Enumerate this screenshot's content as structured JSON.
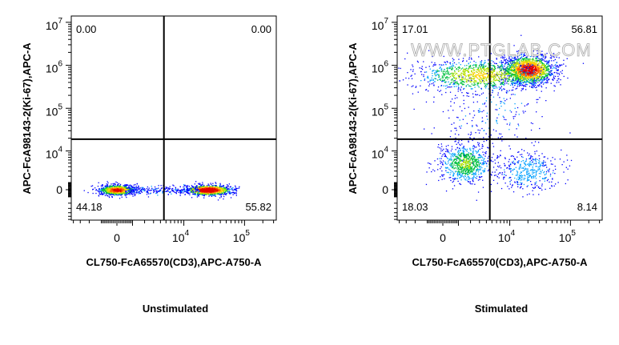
{
  "chart_data": [
    {
      "type": "scatter",
      "subtype": "flow-cytometry-density-dot-plot",
      "title": "Unstimulated",
      "xlabel": "CL750-FcA65570(CD3),APC-A750-A",
      "ylabel": "APC-FcA98143-2(Ki-67),APC-A",
      "x_scale": "biexponential",
      "y_scale": "biexponential",
      "x_ticks": [
        {
          "value": 0,
          "base": "0",
          "exp": ""
        },
        {
          "value": 10000,
          "base": "10",
          "exp": "4"
        },
        {
          "value": 100000,
          "base": "10",
          "exp": "5"
        }
      ],
      "y_ticks": [
        {
          "value": 0,
          "base": "0",
          "exp": ""
        },
        {
          "value": 10000,
          "base": "10",
          "exp": "4"
        },
        {
          "value": 100000,
          "base": "10",
          "exp": "5"
        },
        {
          "value": 1000000,
          "base": "10",
          "exp": "6"
        },
        {
          "value": 10000000,
          "base": "10",
          "exp": "7"
        }
      ],
      "quadrant_gate": {
        "x": 4600,
        "y": 19000
      },
      "quadrants": {
        "upper_left": "0.00",
        "upper_right": "0.00",
        "lower_left": "44.18",
        "lower_right": "55.82"
      },
      "populations": [
        {
          "x": 0,
          "y": 0,
          "weight": 0.44
        },
        {
          "x": 25000,
          "y": 0,
          "weight": 0.56
        }
      ],
      "grid": false,
      "watermark": ""
    },
    {
      "type": "scatter",
      "subtype": "flow-cytometry-density-dot-plot",
      "title": "Stimulated",
      "xlabel": "CL750-FcA65570(CD3),APC-A750-A",
      "ylabel": "APC-FcA98143-2(Ki-67),APC-A",
      "x_scale": "biexponential",
      "y_scale": "biexponential",
      "x_ticks": [
        {
          "value": 0,
          "base": "0",
          "exp": ""
        },
        {
          "value": 10000,
          "base": "10",
          "exp": "4"
        },
        {
          "value": 100000,
          "base": "10",
          "exp": "5"
        }
      ],
      "y_ticks": [
        {
          "value": 0,
          "base": "0",
          "exp": ""
        },
        {
          "value": 10000,
          "base": "10",
          "exp": "4"
        },
        {
          "value": 100000,
          "base": "10",
          "exp": "5"
        },
        {
          "value": 1000000,
          "base": "10",
          "exp": "6"
        },
        {
          "value": 10000000,
          "base": "10",
          "exp": "7"
        }
      ],
      "quadrant_gate": {
        "x": 4600,
        "y": 19000
      },
      "quadrants": {
        "upper_left": "17.01",
        "upper_right": "56.81",
        "lower_left": "18.03",
        "lower_right": "8.14"
      },
      "populations": [
        {
          "x": 20000,
          "y": 800000,
          "weight": 0.45
        },
        {
          "x": 3000,
          "y": 600000,
          "weight": 0.25
        },
        {
          "x": 1500,
          "y": 5000,
          "weight": 0.18
        },
        {
          "x": 20000,
          "y": 3000,
          "weight": 0.08
        },
        {
          "x": 5000,
          "y": 80000,
          "weight": 0.04
        }
      ],
      "grid": false,
      "watermark": "WWW.PTGLAB.COM"
    }
  ]
}
